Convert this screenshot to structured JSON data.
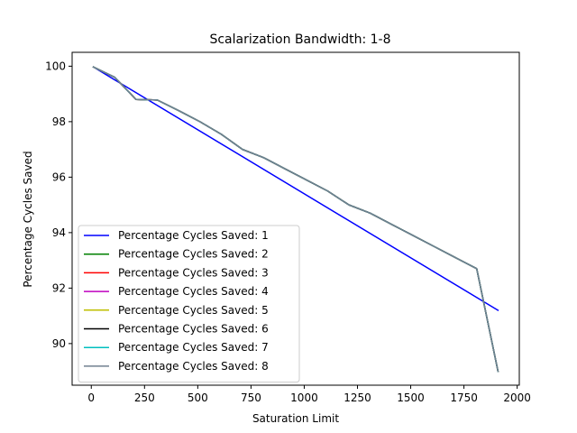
{
  "chart_data": {
    "type": "line",
    "title": "Scalarization Bandwidth: 1-8",
    "xlabel": "Saturation Limit",
    "ylabel": "Percentage Cycles Saved",
    "xlim": [
      -90,
      2010
    ],
    "ylim": [
      88.5,
      100.5
    ],
    "xticks": [
      0,
      250,
      500,
      750,
      1000,
      1250,
      1500,
      1750,
      2000
    ],
    "xtick_labels": [
      "0",
      "250",
      "500",
      "750",
      "1000",
      "1250",
      "1500",
      "1750",
      "2000"
    ],
    "yticks": [
      90,
      92,
      94,
      96,
      98,
      100
    ],
    "ytick_labels": [
      "90",
      "92",
      "94",
      "96",
      "98",
      "100"
    ],
    "grid": false,
    "legend_position": "lower-left",
    "series": [
      {
        "name": "Percentage Cycles Saved: 1",
        "color": "#0000ff",
        "x": [
          10,
          1910
        ],
        "y": [
          99.97,
          91.2
        ]
      },
      {
        "name": "Percentage Cycles Saved: 2",
        "color": "#008000",
        "x": [
          10,
          110,
          210,
          310,
          410,
          510,
          610,
          710,
          810,
          910,
          1010,
          1110,
          1210,
          1310,
          1410,
          1510,
          1610,
          1710,
          1810,
          1910
        ],
        "y": [
          99.97,
          99.6,
          98.8,
          98.78,
          98.4,
          98.0,
          97.55,
          97.0,
          96.7,
          96.3,
          95.9,
          95.5,
          95.0,
          94.7,
          94.3,
          93.9,
          93.5,
          93.1,
          92.7,
          89.0
        ]
      },
      {
        "name": "Percentage Cycles Saved: 3",
        "color": "#ff0000",
        "x": [
          10,
          110,
          210,
          310,
          410,
          510,
          610,
          710,
          810,
          910,
          1010,
          1110,
          1210,
          1310,
          1410,
          1510,
          1610,
          1710,
          1810,
          1910
        ],
        "y": [
          99.97,
          99.6,
          98.8,
          98.78,
          98.4,
          98.0,
          97.55,
          97.0,
          96.7,
          96.3,
          95.9,
          95.5,
          95.0,
          94.7,
          94.3,
          93.9,
          93.5,
          93.1,
          92.7,
          89.0
        ]
      },
      {
        "name": "Percentage Cycles Saved: 4",
        "color": "#bf00bf",
        "x": [
          10,
          110,
          210,
          310,
          410,
          510,
          610,
          710,
          810,
          910,
          1010,
          1110,
          1210,
          1310,
          1410,
          1510,
          1610,
          1710,
          1810,
          1910
        ],
        "y": [
          99.97,
          99.6,
          98.8,
          98.78,
          98.4,
          98.0,
          97.55,
          97.0,
          96.7,
          96.3,
          95.9,
          95.5,
          95.0,
          94.7,
          94.3,
          93.9,
          93.5,
          93.1,
          92.7,
          89.0
        ]
      },
      {
        "name": "Percentage Cycles Saved: 5",
        "color": "#bfbf00",
        "x": [
          10,
          110,
          210,
          310,
          410,
          510,
          610,
          710,
          810,
          910,
          1010,
          1110,
          1210,
          1310,
          1410,
          1510,
          1610,
          1710,
          1810,
          1910
        ],
        "y": [
          99.97,
          99.6,
          98.8,
          98.78,
          98.4,
          98.0,
          97.55,
          97.0,
          96.7,
          96.3,
          95.9,
          95.5,
          95.0,
          94.7,
          94.3,
          93.9,
          93.5,
          93.1,
          92.7,
          89.0
        ]
      },
      {
        "name": "Percentage Cycles Saved: 6",
        "color": "#000000",
        "x": [
          10,
          110,
          210,
          310,
          410,
          510,
          610,
          710,
          810,
          910,
          1010,
          1110,
          1210,
          1310,
          1410,
          1510,
          1610,
          1710,
          1810,
          1910
        ],
        "y": [
          99.97,
          99.6,
          98.8,
          98.78,
          98.4,
          98.0,
          97.55,
          97.0,
          96.7,
          96.3,
          95.9,
          95.5,
          95.0,
          94.7,
          94.3,
          93.9,
          93.5,
          93.1,
          92.7,
          89.0
        ]
      },
      {
        "name": "Percentage Cycles Saved: 7",
        "color": "#00bfbf",
        "x": [
          10,
          110,
          210,
          310,
          410,
          510,
          610,
          710,
          810,
          910,
          1010,
          1110,
          1210,
          1310,
          1410,
          1510,
          1610,
          1710,
          1810,
          1910
        ],
        "y": [
          99.97,
          99.6,
          98.8,
          98.78,
          98.4,
          98.0,
          97.55,
          97.0,
          96.7,
          96.3,
          95.9,
          95.5,
          95.0,
          94.7,
          94.3,
          93.9,
          93.5,
          93.1,
          92.7,
          89.0
        ]
      },
      {
        "name": "Percentage Cycles Saved: 8",
        "color": "#708090",
        "x": [
          10,
          110,
          210,
          310,
          410,
          510,
          610,
          710,
          810,
          910,
          1010,
          1110,
          1210,
          1310,
          1410,
          1510,
          1610,
          1710,
          1810,
          1910
        ],
        "y": [
          99.97,
          99.6,
          98.8,
          98.78,
          98.4,
          98.0,
          97.55,
          97.0,
          96.7,
          96.3,
          95.9,
          95.5,
          95.0,
          94.7,
          94.3,
          93.9,
          93.5,
          93.1,
          92.7,
          89.0
        ]
      }
    ]
  }
}
